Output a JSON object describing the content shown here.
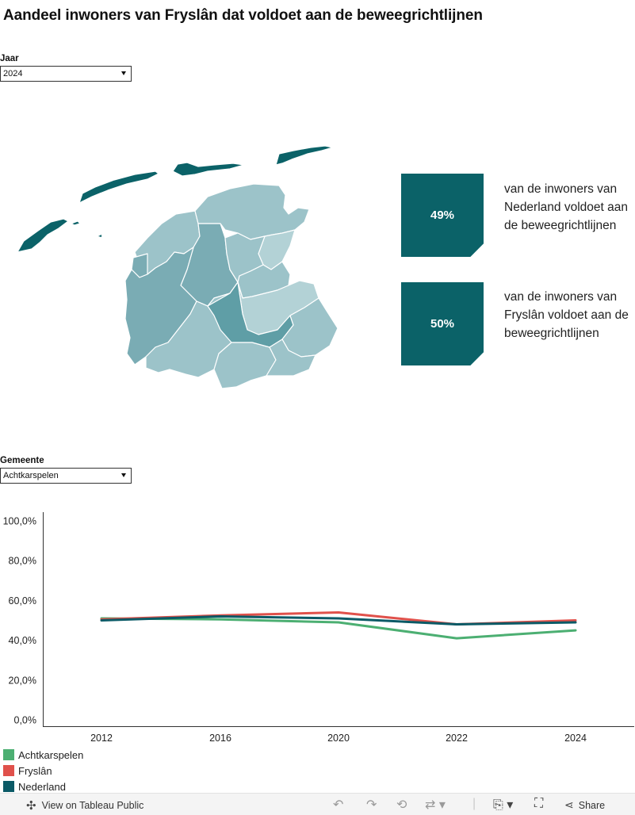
{
  "title": "Aandeel inwoners van Fryslân dat voldoet aan de beweegrichtlijnen",
  "filters": {
    "year": {
      "label": "Jaar",
      "value": "2024"
    },
    "municipality": {
      "label": "Gemeente",
      "value": "Achtkarspelen"
    }
  },
  "kpis": [
    {
      "value": "49%",
      "text": "van de inwoners van Nederland voldoet aan de beweegrichtlijnen"
    },
    {
      "value": "50%",
      "text": "van de inwoners van Fryslân voldoet aan de beweegrichtlijnen"
    }
  ],
  "map": {
    "colors": {
      "islands": "#0b6268",
      "dark": "#5f9ea6",
      "mid": "#7aacb4",
      "light": "#9cc3c9",
      "lighter": "#b3d2d6"
    }
  },
  "chart_data": {
    "type": "line",
    "x": [
      2012,
      2016,
      2020,
      2022,
      2024
    ],
    "ylim": [
      0,
      100
    ],
    "yticks": [
      "0,0%",
      "20,0%",
      "40,0%",
      "60,0%",
      "80,0%",
      "100,0%"
    ],
    "ytick_values": [
      0,
      20,
      40,
      60,
      80,
      100
    ],
    "series": [
      {
        "name": "Achtkarspelen",
        "color": "#4caf72",
        "values": [
          51.0,
          50.5,
          49.0,
          41.0,
          45.0
        ]
      },
      {
        "name": "Fryslân",
        "color": "#e0514b",
        "values": [
          50.5,
          52.5,
          54.0,
          48.0,
          50.0
        ]
      },
      {
        "name": "Nederland",
        "color": "#0b5a66",
        "values": [
          50.0,
          52.0,
          51.0,
          48.0,
          49.0
        ]
      }
    ]
  },
  "footer": {
    "view_label": "View on Tableau Public",
    "share_label": "Share",
    "icons": [
      "tableau-logo-icon",
      "undo-icon",
      "redo-icon",
      "revert-icon",
      "refresh-icon",
      "download-icon",
      "fullscreen-icon",
      "share-icon"
    ]
  }
}
